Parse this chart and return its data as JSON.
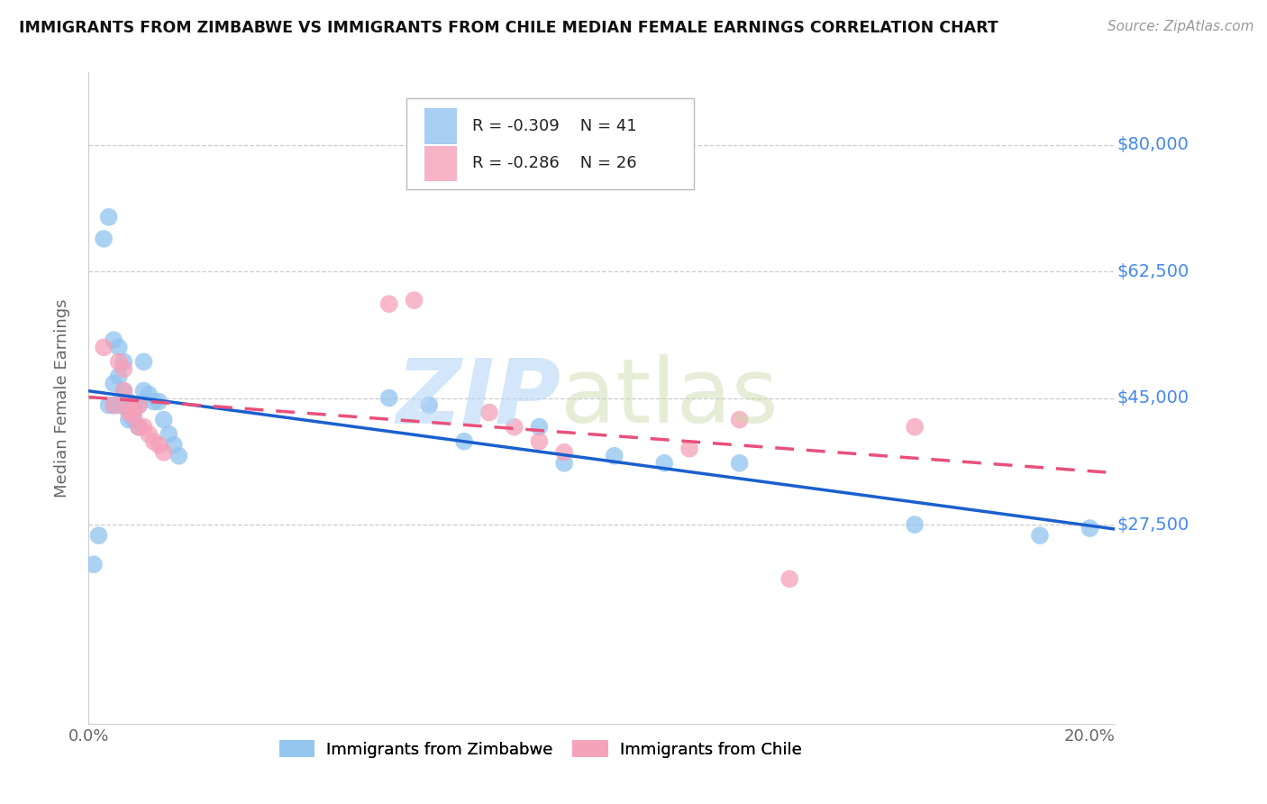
{
  "title": "IMMIGRANTS FROM ZIMBABWE VS IMMIGRANTS FROM CHILE MEDIAN FEMALE EARNINGS CORRELATION CHART",
  "source": "Source: ZipAtlas.com",
  "ylabel": "Median Female Earnings",
  "R_zimbabwe": -0.309,
  "N_zimbabwe": 41,
  "R_chile": -0.286,
  "N_chile": 26,
  "color_zimbabwe": "#90c4f0",
  "color_chile": "#f5a0b8",
  "line_color_zimbabwe": "#1a5fce",
  "line_color_chile": "#e8507a",
  "ylim": [
    0,
    90000
  ],
  "xlim": [
    0.0,
    0.205
  ],
  "ytick_positions": [
    27500,
    45000,
    62500,
    80000
  ],
  "ytick_labels": [
    "$27,500",
    "$45,000",
    "$62,500",
    "$80,000"
  ],
  "xtick_positions": [
    0.0,
    0.05,
    0.1,
    0.15,
    0.2
  ],
  "xtick_labels": [
    "0.0%",
    "",
    "",
    "",
    "20.0%"
  ],
  "zimbabwe_x": [
    0.001,
    0.002,
    0.003,
    0.004,
    0.004,
    0.005,
    0.005,
    0.005,
    0.006,
    0.006,
    0.006,
    0.007,
    0.007,
    0.007,
    0.008,
    0.008,
    0.008,
    0.009,
    0.009,
    0.01,
    0.01,
    0.011,
    0.011,
    0.012,
    0.013,
    0.014,
    0.015,
    0.016,
    0.017,
    0.018,
    0.06,
    0.068,
    0.075,
    0.09,
    0.095,
    0.105,
    0.115,
    0.13,
    0.165,
    0.19,
    0.2
  ],
  "zimbabwe_y": [
    22000,
    26000,
    67000,
    70000,
    44000,
    53000,
    47000,
    44000,
    52000,
    48000,
    44000,
    50000,
    46000,
    44000,
    44500,
    43500,
    42000,
    44000,
    42000,
    44000,
    41000,
    50000,
    46000,
    45500,
    44500,
    44500,
    42000,
    40000,
    38500,
    37000,
    45000,
    44000,
    39000,
    41000,
    36000,
    37000,
    36000,
    36000,
    27500,
    26000,
    27000
  ],
  "chile_x": [
    0.003,
    0.005,
    0.006,
    0.007,
    0.007,
    0.008,
    0.008,
    0.009,
    0.009,
    0.01,
    0.01,
    0.011,
    0.012,
    0.013,
    0.014,
    0.015,
    0.06,
    0.065,
    0.08,
    0.085,
    0.09,
    0.095,
    0.13,
    0.14,
    0.165,
    0.12
  ],
  "chile_y": [
    52000,
    44000,
    50000,
    49000,
    46000,
    44000,
    43000,
    43500,
    42500,
    44000,
    41000,
    41000,
    40000,
    39000,
    38500,
    37500,
    58000,
    58500,
    43000,
    41000,
    39000,
    37500,
    42000,
    20000,
    41000,
    38000
  ],
  "legend_label_zim": "Immigrants from Zimbabwe",
  "legend_label_chile": "Immigrants from Chile"
}
